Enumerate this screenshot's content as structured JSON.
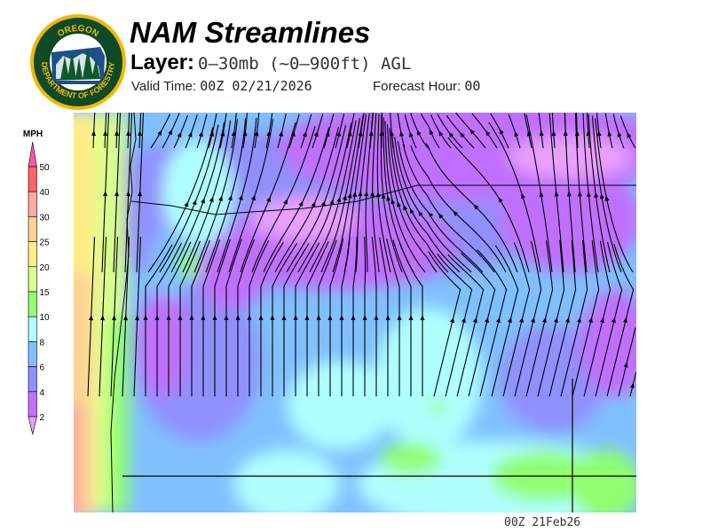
{
  "header": {
    "logo": {
      "text_top": "OREGON",
      "text_bottom": "DEPARTMENT OF FORESTRY"
    },
    "title": "NAM Streamlines",
    "layer_label": "Layer:",
    "layer_value": "0–30mb (~0–900ft) AGL",
    "valid_label": "Valid Time:",
    "valid_value": "00Z 02/21/2026",
    "forecast_label": "Forecast Hour:",
    "forecast_value": "00"
  },
  "legend": {
    "unit": "MPH",
    "ticks": [
      "50",
      "40",
      "30",
      "25",
      "20",
      "15",
      "10",
      "8",
      "6",
      "4",
      "2"
    ],
    "colors": {
      "above_50": "#ff55aa",
      "40-50": "#ff6464",
      "30-40": "#ffaaa0",
      "25-30": "#ffd094",
      "20-25": "#ffee88",
      "15-20": "#d8ff90",
      "10-15": "#90ff70",
      "8-10": "#b0ffff",
      "6-8": "#80c0ff",
      "4-6": "#9090ff",
      "2-4": "#c070ff",
      "below_2": "#e8a0ff"
    }
  },
  "footer": {
    "timestamp": "00Z 21Feb26"
  }
}
